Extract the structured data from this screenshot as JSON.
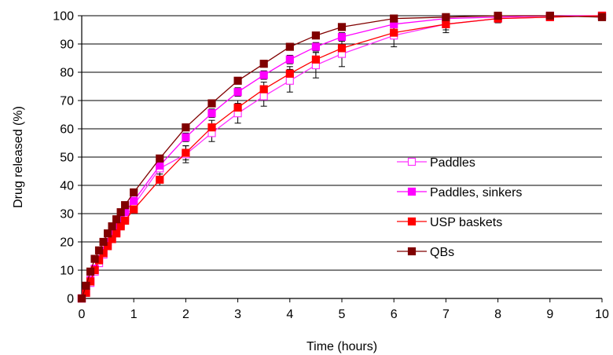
{
  "chart_data": {
    "type": "line",
    "xlabel": "Time (hours)",
    "ylabel": "Drug released (%)",
    "xlim": [
      0,
      10
    ],
    "ylim": [
      0,
      100
    ],
    "xticks": [
      "0",
      "1",
      "2",
      "3",
      "4",
      "5",
      "6",
      "7",
      "8",
      "9",
      "10"
    ],
    "yticks": [
      "0",
      "10",
      "20",
      "30",
      "40",
      "50",
      "60",
      "70",
      "80",
      "90",
      "100"
    ],
    "grid": "horizontal",
    "legend_position": "right",
    "x": [
      0,
      0.083,
      0.167,
      0.25,
      0.333,
      0.417,
      0.5,
      0.583,
      0.667,
      0.75,
      0.833,
      1,
      1.5,
      2,
      2.5,
      3,
      3.5,
      4,
      4.5,
      5,
      6,
      7,
      8,
      9,
      10
    ],
    "series": [
      {
        "name": "Paddles",
        "color": "#ff33ff",
        "marker": "square-open",
        "values": [
          0,
          2,
          5.5,
          9.5,
          12.5,
          15.5,
          18.5,
          21,
          23.5,
          26,
          28.5,
          33,
          46,
          51,
          58.5,
          65.5,
          71.5,
          77,
          82.5,
          86.5,
          93,
          97,
          99,
          99.5,
          100
        ],
        "error": [
          0,
          0.5,
          0.8,
          1,
          1,
          1,
          1.2,
          1.2,
          1.2,
          1.5,
          1.5,
          2,
          3,
          3,
          3,
          3.5,
          3.5,
          4,
          4.5,
          4.5,
          4,
          3,
          1.5,
          1,
          0.5
        ]
      },
      {
        "name": "Paddles, sinkers",
        "color": "#ff00ff",
        "marker": "square",
        "values": [
          0,
          2.5,
          6.5,
          10.5,
          14,
          17,
          20,
          23,
          25.5,
          28,
          30.5,
          34.5,
          47,
          57,
          65.5,
          73,
          79,
          84.5,
          89,
          92.5,
          97,
          99,
          99.5,
          100,
          100
        ],
        "error": [
          0,
          0.5,
          0.5,
          0.8,
          0.8,
          1,
          1,
          1,
          1,
          1,
          1,
          1,
          1.5,
          1.5,
          1.5,
          1.5,
          1.5,
          1.5,
          1.5,
          1.5,
          1,
          1,
          0.5,
          0.5,
          0.5
        ]
      },
      {
        "name": "USP baskets",
        "color": "#ff0000",
        "marker": "square",
        "values": [
          0,
          2,
          6,
          10,
          13.5,
          16,
          18.5,
          21,
          23,
          25.5,
          27.5,
          31.5,
          42,
          51.5,
          60.5,
          67.5,
          74,
          79.5,
          84.5,
          88.5,
          94,
          97,
          99,
          99.5,
          100
        ],
        "error": [
          0,
          0.5,
          0.5,
          0.8,
          0.8,
          1,
          1,
          1,
          1,
          1,
          1,
          1,
          2,
          2.5,
          2.5,
          2.5,
          2.5,
          2.5,
          2.5,
          2.5,
          2,
          2,
          1,
          1,
          1
        ]
      },
      {
        "name": "QBs",
        "color": "#800000",
        "marker": "square",
        "values": [
          0,
          4.5,
          9.5,
          14,
          17,
          20,
          23,
          25.5,
          28,
          30.5,
          33,
          37.5,
          49.5,
          60.5,
          69,
          77,
          83,
          89,
          93,
          96,
          99,
          99.5,
          100,
          100,
          99.5
        ],
        "error": [
          0,
          0.5,
          0.5,
          0.5,
          0.5,
          0.5,
          0.5,
          0.5,
          0.5,
          0.5,
          0.5,
          0.5,
          0.5,
          0.5,
          0.5,
          0.5,
          0.5,
          0.5,
          0.5,
          0.5,
          0.5,
          0.5,
          0.5,
          0.5,
          0.5
        ]
      }
    ]
  }
}
